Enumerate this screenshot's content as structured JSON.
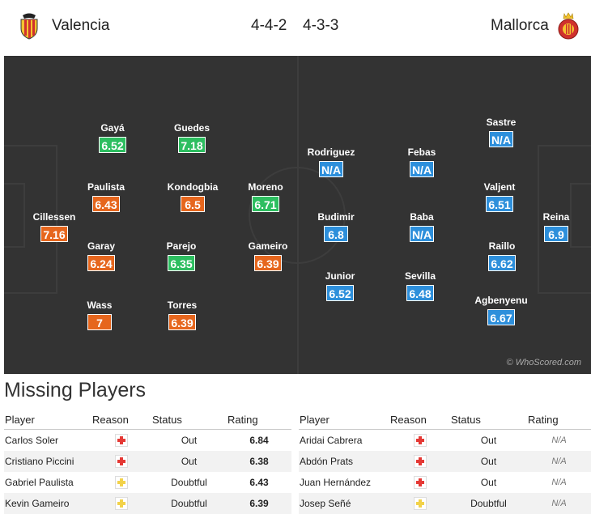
{
  "header": {
    "home_team": "Valencia",
    "away_team": "Mallorca",
    "home_formation": "4-4-2",
    "away_formation": "4-3-3",
    "home_badge_icon": "valencia-bat-crest-icon",
    "away_badge_icon": "mallorca-crest-icon"
  },
  "pitch": {
    "credit": "© WhoScored.com",
    "colors": {
      "green": "#2dbe60",
      "orange": "#e6661d",
      "blue": "#2d8fdb"
    },
    "home_players": [
      {
        "name": "Gayá",
        "rating": "6.52",
        "color": "green"
      },
      {
        "name": "Guedes",
        "rating": "7.18",
        "color": "green"
      },
      {
        "name": "Paulista",
        "rating": "6.43",
        "color": "orange"
      },
      {
        "name": "Kondogbia",
        "rating": "6.5",
        "color": "orange"
      },
      {
        "name": "Moreno",
        "rating": "6.71",
        "color": "green"
      },
      {
        "name": "Cillessen",
        "rating": "7.16",
        "color": "orange"
      },
      {
        "name": "Garay",
        "rating": "6.24",
        "color": "orange"
      },
      {
        "name": "Parejo",
        "rating": "6.35",
        "color": "green"
      },
      {
        "name": "Gameiro",
        "rating": "6.39",
        "color": "orange"
      },
      {
        "name": "Wass",
        "rating": "7",
        "color": "orange"
      },
      {
        "name": "Torres",
        "rating": "6.39",
        "color": "orange"
      }
    ],
    "away_players": [
      {
        "name": "Sastre",
        "rating": "N/A",
        "color": "blue"
      },
      {
        "name": "Rodriguez",
        "rating": "N/A",
        "color": "blue"
      },
      {
        "name": "Febas",
        "rating": "N/A",
        "color": "blue"
      },
      {
        "name": "Valjent",
        "rating": "6.51",
        "color": "blue"
      },
      {
        "name": "Budimir",
        "rating": "6.8",
        "color": "blue"
      },
      {
        "name": "Baba",
        "rating": "N/A",
        "color": "blue"
      },
      {
        "name": "Reina",
        "rating": "6.9",
        "color": "blue"
      },
      {
        "name": "Raillo",
        "rating": "6.62",
        "color": "blue"
      },
      {
        "name": "Junior",
        "rating": "6.52",
        "color": "blue"
      },
      {
        "name": "Sevilla",
        "rating": "6.48",
        "color": "blue"
      },
      {
        "name": "Agbenyenu",
        "rating": "6.67",
        "color": "blue"
      }
    ]
  },
  "missing": {
    "title": "Missing Players",
    "columns": [
      "Player",
      "Reason",
      "Status",
      "Rating"
    ],
    "home": [
      {
        "player": "Carlos Soler",
        "reason": "red-cross-injury-icon",
        "status": "Out",
        "rating": "6.84"
      },
      {
        "player": "Cristiano Piccini",
        "reason": "red-cross-injury-icon",
        "status": "Out",
        "rating": "6.38"
      },
      {
        "player": "Gabriel Paulista",
        "reason": "yellow-cross-doubtful-icon",
        "status": "Doubtful",
        "rating": "6.43"
      },
      {
        "player": "Kevin Gameiro",
        "reason": "yellow-cross-doubtful-icon",
        "status": "Doubtful",
        "rating": "6.39"
      }
    ],
    "away": [
      {
        "player": "Aridai Cabrera",
        "reason": "red-cross-injury-icon",
        "status": "Out",
        "rating": "N/A"
      },
      {
        "player": "Abdón Prats",
        "reason": "red-cross-injury-icon",
        "status": "Out",
        "rating": "N/A"
      },
      {
        "player": "Juan Hernández",
        "reason": "red-cross-injury-icon",
        "status": "Out",
        "rating": "N/A"
      },
      {
        "player": "Josep Señé",
        "reason": "yellow-cross-doubtful-icon",
        "status": "Doubtful",
        "rating": "N/A"
      }
    ]
  }
}
